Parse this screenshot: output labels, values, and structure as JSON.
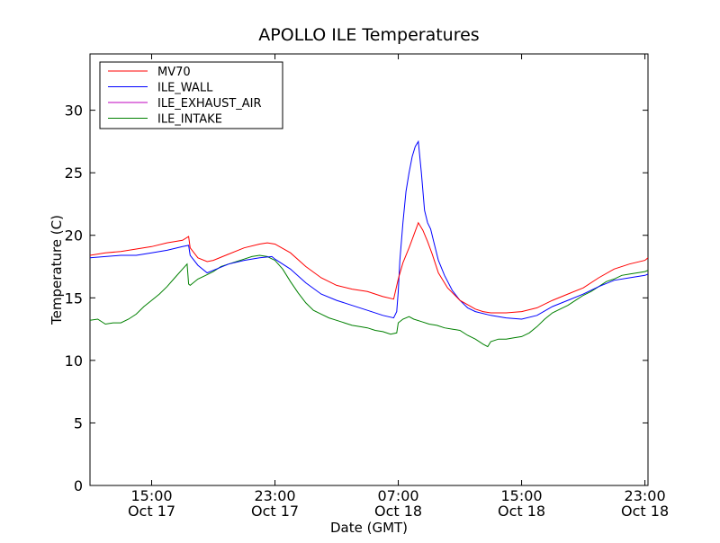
{
  "chart_data": {
    "type": "line",
    "title": "APOLLO ILE Temperatures",
    "xlabel": "Date (GMT)",
    "ylabel": "Temperature (C)",
    "xlim": [
      11.0,
      47.2
    ],
    "ylim": [
      0,
      34.5
    ],
    "grid": false,
    "legend_position": "top-left",
    "x_unit_note": "hours from Oct 17 00:00 GMT",
    "x_ticks": [
      {
        "x": 15,
        "label_time": "15:00",
        "label_date": "Oct 17"
      },
      {
        "x": 23,
        "label_time": "23:00",
        "label_date": "Oct 17"
      },
      {
        "x": 31,
        "label_time": "07:00",
        "label_date": "Oct 18"
      },
      {
        "x": 39,
        "label_time": "15:00",
        "label_date": "Oct 18"
      },
      {
        "x": 47,
        "label_time": "23:00",
        "label_date": "Oct 18"
      }
    ],
    "y_ticks": [
      0,
      5,
      10,
      15,
      20,
      25,
      30
    ],
    "series": [
      {
        "name": "MV70",
        "color": "#ff0000",
        "points": [
          [
            11.0,
            18.4
          ],
          [
            12.0,
            18.6
          ],
          [
            13.0,
            18.7
          ],
          [
            14.0,
            18.9
          ],
          [
            15.0,
            19.1
          ],
          [
            16.0,
            19.4
          ],
          [
            17.0,
            19.6
          ],
          [
            17.4,
            19.9
          ],
          [
            17.5,
            19.0
          ],
          [
            18.0,
            18.2
          ],
          [
            18.6,
            17.9
          ],
          [
            19.0,
            18.0
          ],
          [
            20.0,
            18.5
          ],
          [
            21.0,
            19.0
          ],
          [
            22.0,
            19.3
          ],
          [
            22.5,
            19.4
          ],
          [
            23.0,
            19.3
          ],
          [
            24.0,
            18.6
          ],
          [
            25.0,
            17.5
          ],
          [
            26.0,
            16.6
          ],
          [
            27.0,
            16.0
          ],
          [
            28.0,
            15.7
          ],
          [
            29.0,
            15.5
          ],
          [
            30.0,
            15.1
          ],
          [
            30.7,
            14.9
          ],
          [
            31.0,
            16.5
          ],
          [
            31.3,
            17.8
          ],
          [
            31.7,
            19.0
          ],
          [
            32.0,
            20.0
          ],
          [
            32.3,
            21.0
          ],
          [
            32.6,
            20.4
          ],
          [
            32.9,
            19.5
          ],
          [
            33.2,
            18.5
          ],
          [
            33.6,
            17.0
          ],
          [
            34.2,
            15.8
          ],
          [
            35.0,
            14.8
          ],
          [
            36.0,
            14.1
          ],
          [
            36.5,
            13.9
          ],
          [
            37.0,
            13.8
          ],
          [
            38.0,
            13.8
          ],
          [
            39.0,
            13.9
          ],
          [
            40.0,
            14.2
          ],
          [
            41.0,
            14.8
          ],
          [
            42.0,
            15.3
          ],
          [
            43.0,
            15.8
          ],
          [
            44.0,
            16.6
          ],
          [
            45.0,
            17.3
          ],
          [
            46.0,
            17.7
          ],
          [
            47.0,
            18.0
          ],
          [
            47.2,
            18.2
          ]
        ]
      },
      {
        "name": "ILE_WALL",
        "color": "#0000ff",
        "points": [
          [
            11.0,
            18.2
          ],
          [
            12.0,
            18.3
          ],
          [
            13.0,
            18.4
          ],
          [
            14.0,
            18.4
          ],
          [
            15.0,
            18.6
          ],
          [
            16.0,
            18.8
          ],
          [
            17.0,
            19.1
          ],
          [
            17.4,
            19.2
          ],
          [
            17.5,
            18.4
          ],
          [
            18.0,
            17.6
          ],
          [
            18.6,
            17.0
          ],
          [
            19.0,
            17.2
          ],
          [
            20.0,
            17.7
          ],
          [
            21.0,
            18.0
          ],
          [
            22.0,
            18.2
          ],
          [
            22.8,
            18.3
          ],
          [
            23.0,
            18.1
          ],
          [
            24.0,
            17.3
          ],
          [
            25.0,
            16.2
          ],
          [
            26.0,
            15.3
          ],
          [
            27.0,
            14.8
          ],
          [
            28.0,
            14.4
          ],
          [
            29.0,
            14.0
          ],
          [
            30.0,
            13.6
          ],
          [
            30.7,
            13.4
          ],
          [
            30.9,
            13.9
          ],
          [
            31.0,
            15.5
          ],
          [
            31.1,
            18.0
          ],
          [
            31.3,
            21.0
          ],
          [
            31.5,
            23.5
          ],
          [
            31.7,
            25.0
          ],
          [
            31.9,
            26.3
          ],
          [
            32.1,
            27.1
          ],
          [
            32.3,
            27.5
          ],
          [
            32.5,
            25.0
          ],
          [
            32.7,
            22.0
          ],
          [
            32.9,
            21.0
          ],
          [
            33.1,
            20.5
          ],
          [
            33.3,
            19.5
          ],
          [
            33.6,
            18.0
          ],
          [
            34.0,
            16.8
          ],
          [
            34.5,
            15.6
          ],
          [
            35.0,
            14.8
          ],
          [
            35.5,
            14.2
          ],
          [
            36.0,
            13.9
          ],
          [
            37.0,
            13.6
          ],
          [
            38.0,
            13.4
          ],
          [
            39.0,
            13.3
          ],
          [
            40.0,
            13.6
          ],
          [
            41.0,
            14.3
          ],
          [
            42.0,
            14.8
          ],
          [
            43.0,
            15.3
          ],
          [
            44.0,
            15.9
          ],
          [
            45.0,
            16.4
          ],
          [
            46.0,
            16.6
          ],
          [
            47.0,
            16.8
          ],
          [
            47.2,
            16.9
          ]
        ]
      },
      {
        "name": "ILE_EXHAUST_AIR",
        "color": "#bf00bf",
        "points": []
      },
      {
        "name": "ILE_INTAKE",
        "color": "#008000",
        "points": [
          [
            11.0,
            13.2
          ],
          [
            11.5,
            13.3
          ],
          [
            12.0,
            12.9
          ],
          [
            12.5,
            13.0
          ],
          [
            13.0,
            13.0
          ],
          [
            13.5,
            13.3
          ],
          [
            14.0,
            13.7
          ],
          [
            14.5,
            14.3
          ],
          [
            15.0,
            14.8
          ],
          [
            15.5,
            15.3
          ],
          [
            16.0,
            15.9
          ],
          [
            16.5,
            16.6
          ],
          [
            17.0,
            17.3
          ],
          [
            17.3,
            17.7
          ],
          [
            17.4,
            16.1
          ],
          [
            17.5,
            16.0
          ],
          [
            18.0,
            16.5
          ],
          [
            18.5,
            16.8
          ],
          [
            19.0,
            17.1
          ],
          [
            19.5,
            17.5
          ],
          [
            20.0,
            17.7
          ],
          [
            20.5,
            17.9
          ],
          [
            21.0,
            18.1
          ],
          [
            21.5,
            18.3
          ],
          [
            22.0,
            18.4
          ],
          [
            22.5,
            18.3
          ],
          [
            23.0,
            18.0
          ],
          [
            23.5,
            17.3
          ],
          [
            24.0,
            16.3
          ],
          [
            24.5,
            15.4
          ],
          [
            25.0,
            14.6
          ],
          [
            25.5,
            14.0
          ],
          [
            26.0,
            13.7
          ],
          [
            26.5,
            13.4
          ],
          [
            27.0,
            13.2
          ],
          [
            27.5,
            13.0
          ],
          [
            28.0,
            12.8
          ],
          [
            28.5,
            12.7
          ],
          [
            29.0,
            12.6
          ],
          [
            29.5,
            12.4
          ],
          [
            30.0,
            12.3
          ],
          [
            30.5,
            12.1
          ],
          [
            30.9,
            12.2
          ],
          [
            31.0,
            13.0
          ],
          [
            31.3,
            13.3
          ],
          [
            31.7,
            13.5
          ],
          [
            32.0,
            13.3
          ],
          [
            32.5,
            13.1
          ],
          [
            33.0,
            12.9
          ],
          [
            33.5,
            12.8
          ],
          [
            34.0,
            12.6
          ],
          [
            34.5,
            12.5
          ],
          [
            35.0,
            12.4
          ],
          [
            35.5,
            12.0
          ],
          [
            36.0,
            11.7
          ],
          [
            36.5,
            11.3
          ],
          [
            36.8,
            11.1
          ],
          [
            37.0,
            11.5
          ],
          [
            37.5,
            11.7
          ],
          [
            38.0,
            11.7
          ],
          [
            38.5,
            11.8
          ],
          [
            39.0,
            11.9
          ],
          [
            39.5,
            12.2
          ],
          [
            40.0,
            12.7
          ],
          [
            40.5,
            13.3
          ],
          [
            41.0,
            13.8
          ],
          [
            41.5,
            14.1
          ],
          [
            42.0,
            14.4
          ],
          [
            42.5,
            14.8
          ],
          [
            43.0,
            15.2
          ],
          [
            43.5,
            15.5
          ],
          [
            44.0,
            15.9
          ],
          [
            44.5,
            16.3
          ],
          [
            45.0,
            16.5
          ],
          [
            45.5,
            16.8
          ],
          [
            46.0,
            16.9
          ],
          [
            46.5,
            17.0
          ],
          [
            47.0,
            17.1
          ],
          [
            47.2,
            17.2
          ]
        ]
      }
    ]
  }
}
